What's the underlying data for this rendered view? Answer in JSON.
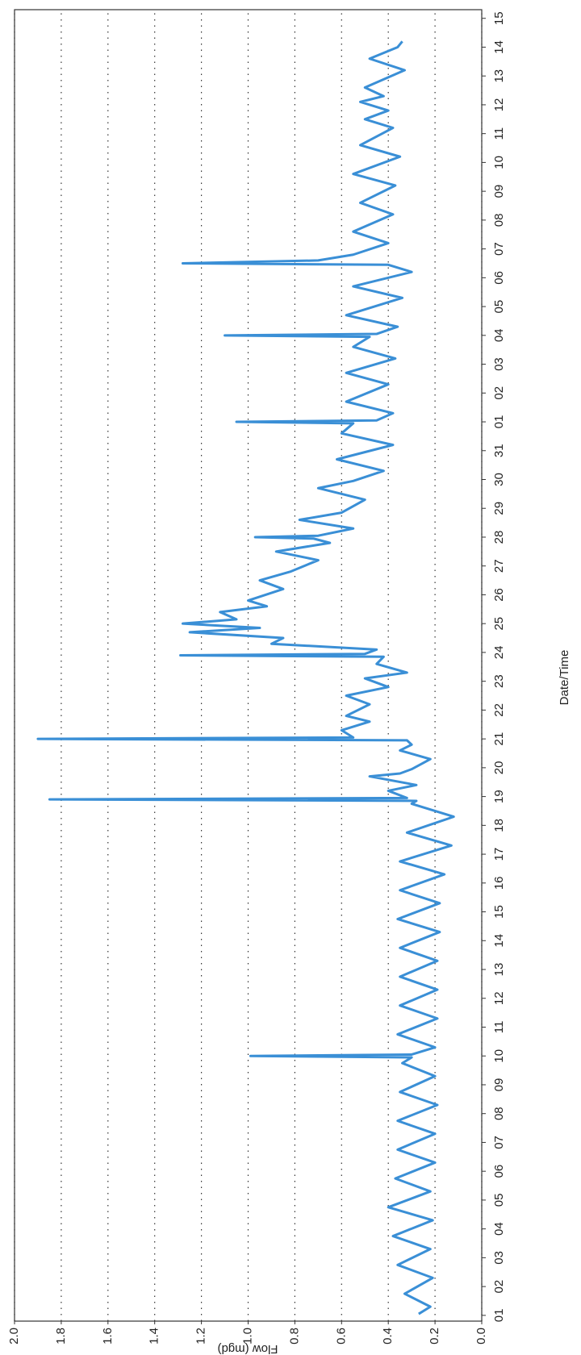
{
  "chart_data": {
    "type": "line",
    "xlabel": "Date/Time",
    "ylabel": "Flow (mgd)",
    "color": "#3a8fd6",
    "grid": true,
    "xlim": [
      -0.2,
      45.3
    ],
    "ylim": [
      0,
      2
    ],
    "xticks": [
      {
        "value": 0,
        "label": "01"
      },
      {
        "value": 1,
        "label": "02"
      },
      {
        "value": 2,
        "label": "03"
      },
      {
        "value": 3,
        "label": "04"
      },
      {
        "value": 4,
        "label": "05"
      },
      {
        "value": 5,
        "label": "06"
      },
      {
        "value": 6,
        "label": "07"
      },
      {
        "value": 7,
        "label": "08"
      },
      {
        "value": 8,
        "label": "09"
      },
      {
        "value": 9,
        "label": "10"
      },
      {
        "value": 10,
        "label": "11"
      },
      {
        "value": 11,
        "label": "12"
      },
      {
        "value": 12,
        "label": "13"
      },
      {
        "value": 13,
        "label": "14"
      },
      {
        "value": 14,
        "label": "15"
      },
      {
        "value": 15,
        "label": "16"
      },
      {
        "value": 16,
        "label": "17"
      },
      {
        "value": 17,
        "label": "18"
      },
      {
        "value": 18,
        "label": "19"
      },
      {
        "value": 19,
        "label": "20"
      },
      {
        "value": 20,
        "label": "21"
      },
      {
        "value": 21,
        "label": "22"
      },
      {
        "value": 22,
        "label": "23"
      },
      {
        "value": 23,
        "label": "24"
      },
      {
        "value": 24,
        "label": "25"
      },
      {
        "value": 25,
        "label": "26"
      },
      {
        "value": 26,
        "label": "27"
      },
      {
        "value": 27,
        "label": "28"
      },
      {
        "value": 28,
        "label": "29"
      },
      {
        "value": 29,
        "label": "30"
      },
      {
        "value": 30,
        "label": "31"
      },
      {
        "value": 31,
        "label": "01"
      },
      {
        "value": 32,
        "label": "02"
      },
      {
        "value": 33,
        "label": "03"
      },
      {
        "value": 34,
        "label": "04"
      },
      {
        "value": 35,
        "label": "05"
      },
      {
        "value": 36,
        "label": "06"
      },
      {
        "value": 37,
        "label": "07"
      },
      {
        "value": 38,
        "label": "08"
      },
      {
        "value": 39,
        "label": "09"
      },
      {
        "value": 40,
        "label": "10"
      },
      {
        "value": 41,
        "label": "11"
      },
      {
        "value": 42,
        "label": "12"
      },
      {
        "value": 43,
        "label": "13"
      },
      {
        "value": 44,
        "label": "14"
      },
      {
        "value": 45,
        "label": "15"
      }
    ],
    "yticks": [
      {
        "value": 0,
        "label": "0.0"
      },
      0.2,
      0.4,
      0.6,
      0.8,
      {
        "value": 1,
        "label": "1.0"
      },
      1.2,
      1.4,
      1.6,
      1.8,
      {
        "value": 2,
        "label": "2.0"
      }
    ],
    "x": [
      0.05,
      0.3,
      0.75,
      1.3,
      1.75,
      2.3,
      2.75,
      3.3,
      3.75,
      4.3,
      4.75,
      5.3,
      5.75,
      6.3,
      6.75,
      7.3,
      7.75,
      8.3,
      8.75,
      8.95,
      9.0,
      9.05,
      9.3,
      9.75,
      10.3,
      10.75,
      11.3,
      11.75,
      12.3,
      12.75,
      13.3,
      13.75,
      14.3,
      14.75,
      15.3,
      15.75,
      16.3,
      16.75,
      17.3,
      17.75,
      17.85,
      17.9,
      17.95,
      18.2,
      18.4,
      18.7,
      18.8,
      18.95,
      19.3,
      19.6,
      19.8,
      19.95,
      20.0,
      20.05,
      20.3,
      20.6,
      20.8,
      21.2,
      21.5,
      21.8,
      22.1,
      22.3,
      22.6,
      22.85,
      22.9,
      22.95,
      23.1,
      23.3,
      23.5,
      23.7,
      23.85,
      24.0,
      24.15,
      24.4,
      24.6,
      24.8,
      25.2,
      25.5,
      25.8,
      26.2,
      26.5,
      26.8,
      26.95,
      27.0,
      27.05,
      27.3,
      27.6,
      27.85,
      28.3,
      28.7,
      28.95,
      29.3,
      29.7,
      30.2,
      30.6,
      30.95,
      31.0,
      31.05,
      31.3,
      31.7,
      32.3,
      32.7,
      33.2,
      33.6,
      33.95,
      34.0,
      34.05,
      34.3,
      34.7,
      35.3,
      35.7,
      36.2,
      36.45,
      36.5,
      36.6,
      36.8,
      37.2,
      37.6,
      38.2,
      38.6,
      39.2,
      39.6,
      40.2,
      40.6,
      41.2,
      41.5,
      41.8,
      42.1,
      42.3,
      42.6,
      43.2,
      43.6,
      44.0,
      44.2
    ],
    "values": [
      0.27,
      0.22,
      0.33,
      0.21,
      0.36,
      0.22,
      0.38,
      0.21,
      0.4,
      0.22,
      0.37,
      0.2,
      0.36,
      0.2,
      0.36,
      0.19,
      0.35,
      0.2,
      0.34,
      0.3,
      0.99,
      0.3,
      0.2,
      0.36,
      0.19,
      0.35,
      0.19,
      0.35,
      0.19,
      0.35,
      0.18,
      0.36,
      0.18,
      0.35,
      0.16,
      0.35,
      0.13,
      0.32,
      0.12,
      0.3,
      0.28,
      1.85,
      0.32,
      0.4,
      0.28,
      0.48,
      0.35,
      0.3,
      0.22,
      0.35,
      0.3,
      0.32,
      1.9,
      0.55,
      0.6,
      0.48,
      0.58,
      0.48,
      0.58,
      0.4,
      0.5,
      0.32,
      0.45,
      0.42,
      1.29,
      0.5,
      0.45,
      0.9,
      0.85,
      1.25,
      0.95,
      1.28,
      1.05,
      1.12,
      0.92,
      1.0,
      0.85,
      0.95,
      0.82,
      0.7,
      0.88,
      0.65,
      0.72,
      0.97,
      0.7,
      0.55,
      0.78,
      0.6,
      0.5,
      0.7,
      0.55,
      0.42,
      0.62,
      0.38,
      0.6,
      0.55,
      1.05,
      0.45,
      0.38,
      0.58,
      0.4,
      0.58,
      0.37,
      0.55,
      0.48,
      1.1,
      0.45,
      0.36,
      0.58,
      0.34,
      0.55,
      0.3,
      0.4,
      1.28,
      0.7,
      0.55,
      0.4,
      0.55,
      0.38,
      0.52,
      0.37,
      0.55,
      0.35,
      0.52,
      0.38,
      0.5,
      0.4,
      0.52,
      0.42,
      0.5,
      0.33,
      0.48,
      0.36,
      0.34
    ]
  }
}
